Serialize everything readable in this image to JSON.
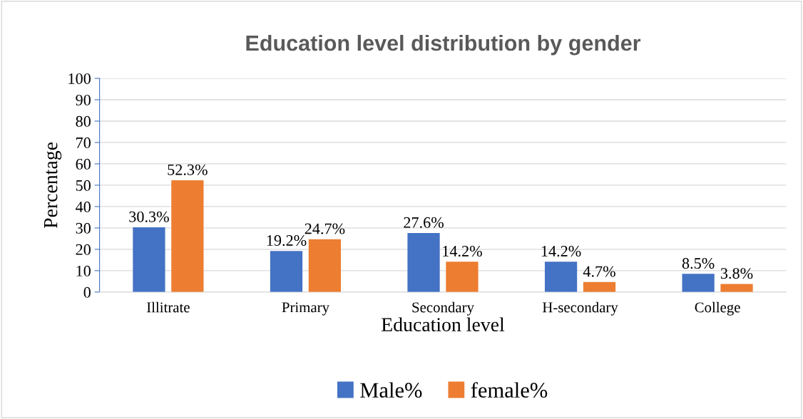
{
  "chart_data": {
    "type": "bar",
    "title": "Education level distribution by gender",
    "xlabel": "Education level",
    "ylabel": "Percentage",
    "categories": [
      "Illitrate",
      "Primary",
      "Secondary",
      "H-secondary",
      "College"
    ],
    "series": [
      {
        "name": "Male%",
        "color": "#4472c4",
        "values": [
          30.3,
          19.2,
          27.6,
          14.2,
          8.5
        ],
        "value_labels": [
          "30.3%",
          "19.2%",
          "27.6%",
          "14.2%",
          "8.5%"
        ]
      },
      {
        "name": "female%",
        "color": "#ed7d31",
        "values": [
          52.3,
          24.7,
          14.2,
          4.7,
          3.8
        ],
        "value_labels": [
          "52.3%",
          "24.7%",
          "14.2%",
          "4.7%",
          "3.8%"
        ]
      }
    ],
    "ylim": [
      0,
      100
    ],
    "yticks": [
      0,
      10,
      20,
      30,
      40,
      50,
      60,
      70,
      80,
      90,
      100
    ],
    "grid": "y",
    "legend": "bottom"
  }
}
